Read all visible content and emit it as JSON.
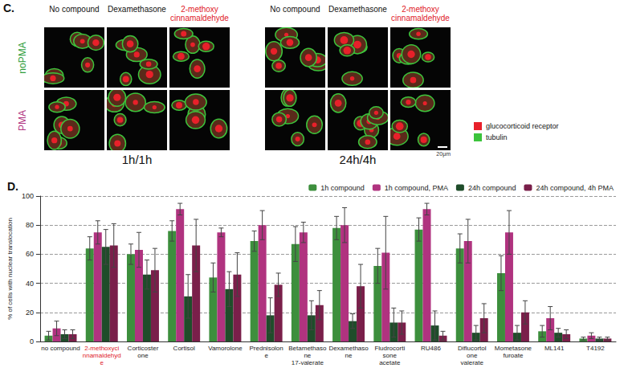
{
  "panel_c": {
    "letter": "C.",
    "columns": [
      "No compound",
      "Dexamethasone",
      "2-methoxy cinnamaldehyde"
    ],
    "rows": [
      "noPMA",
      "PMA"
    ],
    "groups": [
      "1h/1h",
      "24h/4h"
    ],
    "legend": [
      {
        "label": "glucocorticoid receptor",
        "color": "#e8202a"
      },
      {
        "label": "tubulin",
        "color": "#3cc43c"
      }
    ],
    "scale_bar": "20μm"
  },
  "chart_data": {
    "type": "bar",
    "title": "D.",
    "y_label": "% of cells with nuclear translocation",
    "categories": [
      "no compound",
      "2-methoxycinnamaldehyde",
      "Corticosterone",
      "Cortisol",
      "Vamorolone",
      "Prednisolone",
      "Betamethasone 17-valerate",
      "Dexamethasone",
      "Fludrocortisone acetate",
      "RU486",
      "Diflucortolone valerate",
      "Mometasone furoate",
      "ML141",
      "T4192"
    ],
    "series": [
      {
        "name": "1h compound",
        "color": "#3d8f3d",
        "values": [
          4,
          64,
          60,
          76,
          44,
          69,
          67,
          78,
          52,
          77,
          64,
          47,
          7,
          2
        ],
        "errors": [
          3,
          8,
          7,
          7,
          10,
          7,
          12,
          8,
          12,
          8,
          10,
          12,
          4,
          1
        ]
      },
      {
        "name": "1h compound, PMA",
        "color": "#b0337f",
        "values": [
          9,
          75,
          63,
          91,
          75,
          80,
          75,
          80,
          61,
          91,
          69,
          75,
          16,
          4
        ],
        "errors": [
          5,
          8,
          12,
          4,
          3,
          10,
          7,
          12,
          25,
          4,
          15,
          15,
          8,
          2
        ]
      },
      {
        "name": "24h compound",
        "color": "#1f4d2a",
        "values": [
          5,
          65,
          46,
          31,
          36,
          18,
          18,
          14,
          13,
          11,
          6,
          6,
          6,
          2
        ],
        "errors": [
          3,
          12,
          10,
          15,
          12,
          12,
          10,
          5,
          10,
          10,
          5,
          5,
          3,
          1
        ]
      },
      {
        "name": "24h compound, 4h PMA",
        "color": "#7a1f4a",
        "values": [
          5,
          66,
          49,
          66,
          46,
          39,
          25,
          38,
          13,
          4,
          16,
          20,
          5,
          2
        ],
        "errors": [
          3,
          15,
          15,
          18,
          15,
          8,
          10,
          15,
          8,
          3,
          10,
          8,
          3,
          1
        ]
      }
    ],
    "ylim": [
      0,
      100
    ],
    "yticks": [
      0,
      20,
      40,
      60,
      80,
      100
    ],
    "grid": true,
    "legend": "top"
  }
}
